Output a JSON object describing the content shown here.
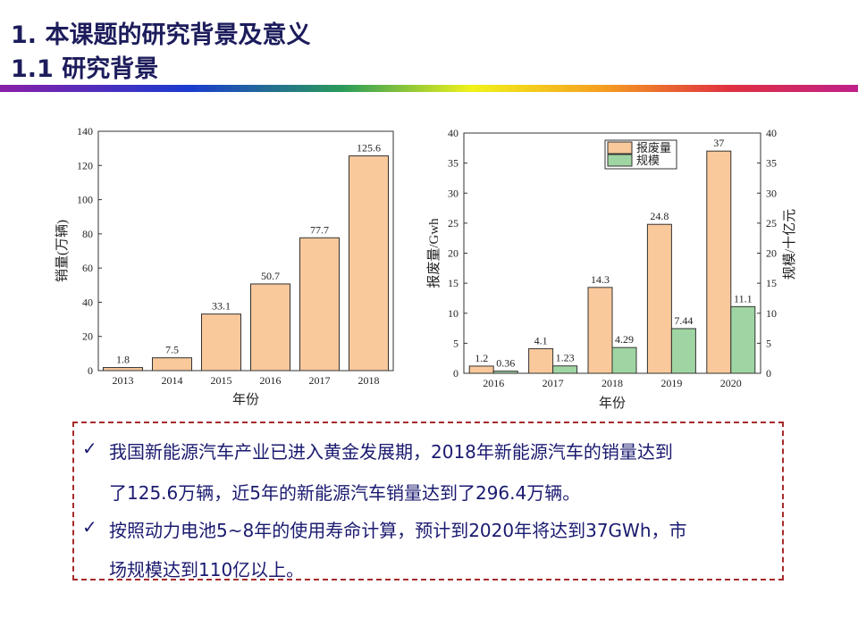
{
  "header": {
    "title": "1. 本课题的研究背景及意义",
    "subtitle": "1.1 研究背景"
  },
  "chart_data": [
    {
      "type": "bar",
      "categories": [
        "2013",
        "2014",
        "2015",
        "2016",
        "2017",
        "2018"
      ],
      "values": [
        1.8,
        7.5,
        33.1,
        50.7,
        77.7,
        125.6
      ],
      "xlabel": "年份",
      "ylabel": "销量(万辆)",
      "ylim": [
        0,
        140
      ],
      "yticks": [
        0,
        20,
        40,
        60,
        80,
        100,
        120,
        140
      ],
      "color": "#F9C89B"
    },
    {
      "type": "bar",
      "categories": [
        "2016",
        "2017",
        "2018",
        "2019",
        "2020"
      ],
      "series": [
        {
          "name": "报废量",
          "values": [
            1.2,
            4.1,
            14.3,
            24.8,
            37
          ],
          "color": "#F9C89B"
        },
        {
          "name": "规模",
          "values": [
            0.36,
            1.23,
            4.29,
            7.44,
            11.1
          ],
          "color": "#9FD5A2"
        }
      ],
      "xlabel": "年份",
      "ylabel": "报废量/Gwh",
      "y2label": "规模/十亿元",
      "ylim": [
        0,
        40
      ],
      "y2lim": [
        0,
        40
      ],
      "yticks": [
        0,
        5,
        10,
        15,
        20,
        25,
        30,
        35,
        40
      ],
      "legend": "top-right"
    }
  ],
  "bullets": [
    {
      "lines": [
        "我国新能源汽车产业已进入黄金发展期，2018年新能源汽车的销量达到",
        "了125.6万辆，近5年的新能源汽车销量达到了296.4万辆。"
      ]
    },
    {
      "lines": [
        "按照动力电池5~8年的使用寿命计算，预计到2020年将达到37GWh，市",
        "场规模达到110亿以上。"
      ]
    }
  ],
  "check_icon": "✓"
}
